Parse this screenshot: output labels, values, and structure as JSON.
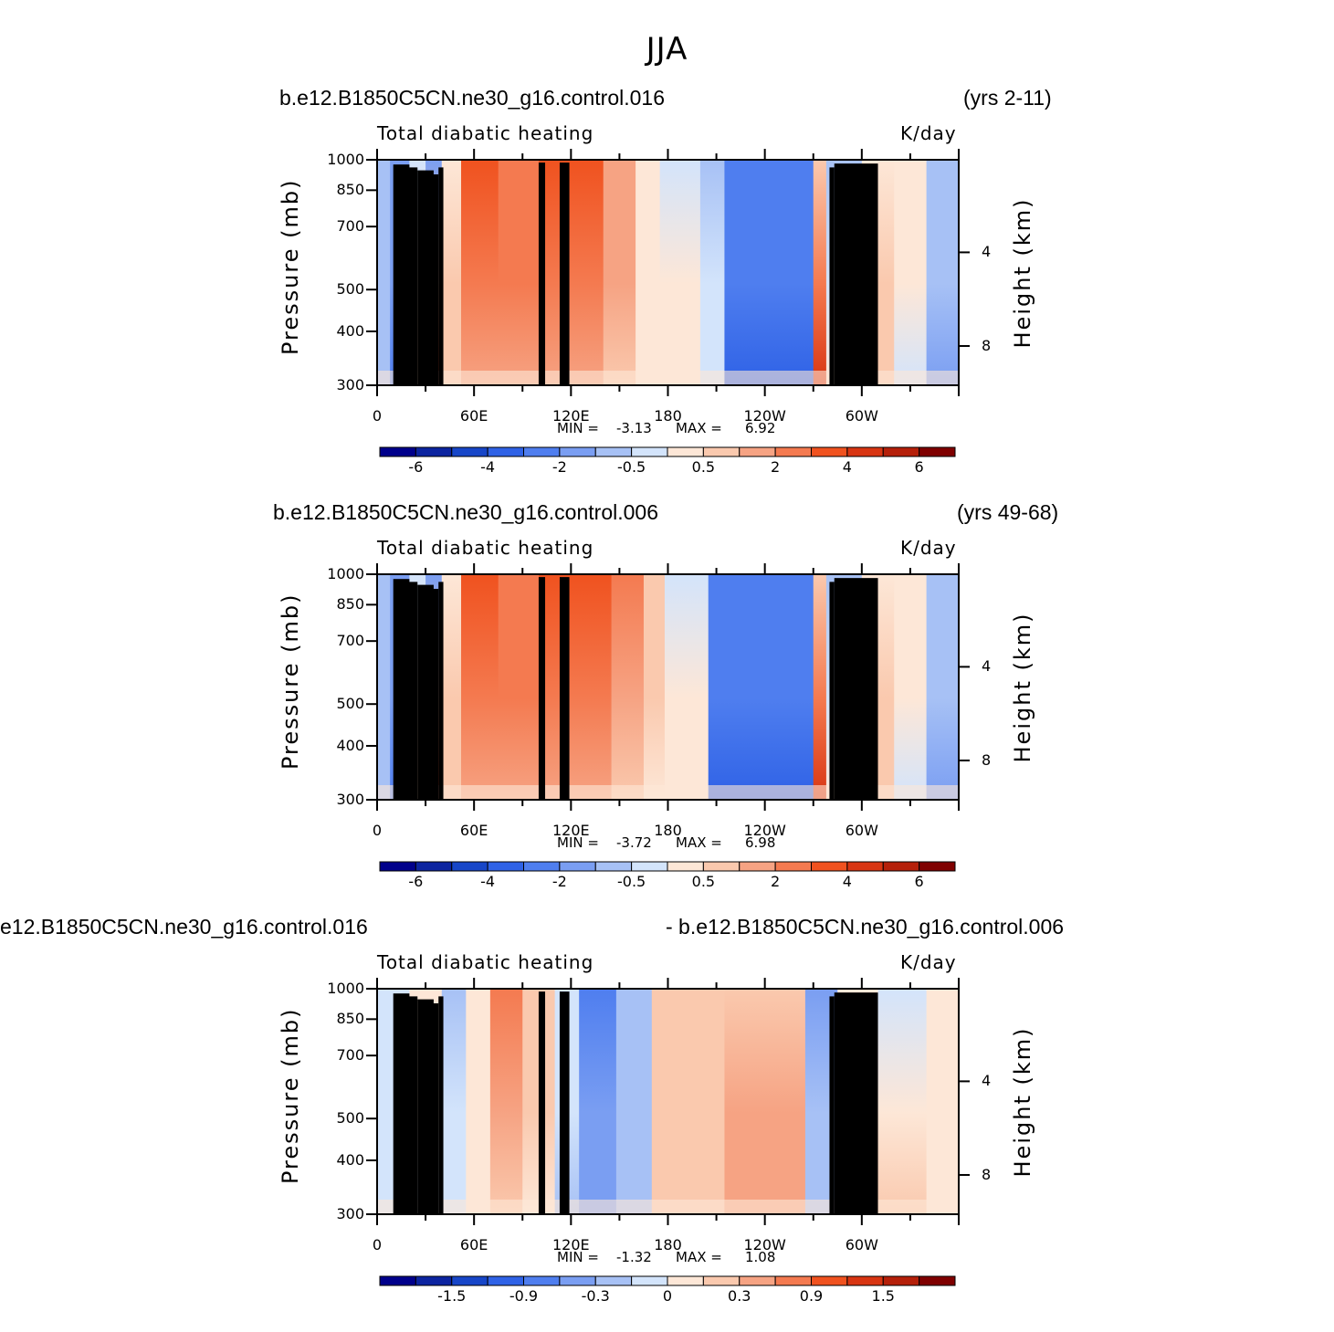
{
  "title": "JJA",
  "colors": {
    "palette": [
      "#00008b",
      "#0c24a0",
      "#1746c8",
      "#2f62e6",
      "#4f7eef",
      "#7a9ef2",
      "#a7c1f5",
      "#d3e4fb",
      "#fde7d7",
      "#fac9ae",
      "#f6a383",
      "#f47a50",
      "#f0521f",
      "#d83512",
      "#b5200a",
      "#7f0000"
    ],
    "land": "#000000",
    "frame": "#000000"
  },
  "chart_data": [
    {
      "type": "heatmap",
      "case_left": "b.e12.B1850C5CN.ne30_g16.control.016",
      "case_right": "(yrs 2-11)",
      "field": "Total diabatic heating",
      "units": "K/day",
      "xlabel": "",
      "ylabel": "Pressure (mb)",
      "ylabel_right": "Height (km)",
      "x_ticks": [
        "0",
        "60E",
        "120E",
        "180",
        "120W",
        "60W"
      ],
      "y_ticks": [
        "300",
        "400",
        "500",
        "700",
        "850",
        "1000"
      ],
      "height_ticks": [
        "8",
        "4"
      ],
      "min_label": "MIN =",
      "min_value": "-3.13",
      "max_label": "MAX =",
      "max_value": "6.92",
      "colorbar_labels": [
        "-6",
        "-4",
        "-2",
        "-0.5",
        "0.5",
        "2",
        "4",
        "6"
      ],
      "colorbar_label_positions": [
        1,
        3,
        5,
        7,
        9,
        11,
        13,
        15
      ],
      "xlim": [
        0,
        360
      ],
      "ylim": [
        1000,
        300
      ]
    },
    {
      "type": "heatmap",
      "case_left": "b.e12.B1850C5CN.ne30_g16.control.006",
      "case_right": "(yrs 49-68)",
      "field": "Total diabatic heating",
      "units": "K/day",
      "xlabel": "",
      "ylabel": "Pressure (mb)",
      "ylabel_right": "Height (km)",
      "x_ticks": [
        "0",
        "60E",
        "120E",
        "180",
        "120W",
        "60W"
      ],
      "y_ticks": [
        "300",
        "400",
        "500",
        "700",
        "850",
        "1000"
      ],
      "height_ticks": [
        "8",
        "4"
      ],
      "min_label": "MIN =",
      "min_value": "-3.72",
      "max_label": "MAX =",
      "max_value": "6.98",
      "colorbar_labels": [
        "-6",
        "-4",
        "-2",
        "-0.5",
        "0.5",
        "2",
        "4",
        "6"
      ],
      "colorbar_label_positions": [
        1,
        3,
        5,
        7,
        9,
        11,
        13,
        15
      ],
      "xlim": [
        0,
        360
      ],
      "ylim": [
        1000,
        300
      ]
    },
    {
      "type": "heatmap",
      "case_left": "e12.B1850C5CN.ne30_g16.control.016",
      "case_right": "- b.e12.B1850C5CN.ne30_g16.control.006",
      "field": "Total diabatic heating",
      "units": "K/day",
      "xlabel": "",
      "ylabel": "Pressure (mb)",
      "ylabel_right": "Height (km)",
      "x_ticks": [
        "0",
        "60E",
        "120E",
        "180",
        "120W",
        "60W"
      ],
      "y_ticks": [
        "300",
        "400",
        "500",
        "700",
        "850",
        "1000"
      ],
      "height_ticks": [
        "8",
        "4"
      ],
      "min_label": "MIN =",
      "min_value": "-1.32",
      "max_label": "MAX =",
      "max_value": "1.08",
      "colorbar_labels": [
        "-1.5",
        "-0.9",
        "-0.3",
        "0",
        "0.3",
        "0.9",
        "1.5"
      ],
      "colorbar_label_positions": [
        2,
        4,
        6,
        8,
        10,
        12,
        14
      ],
      "xlim": [
        0,
        360
      ],
      "ylim": [
        1000,
        300
      ]
    }
  ]
}
